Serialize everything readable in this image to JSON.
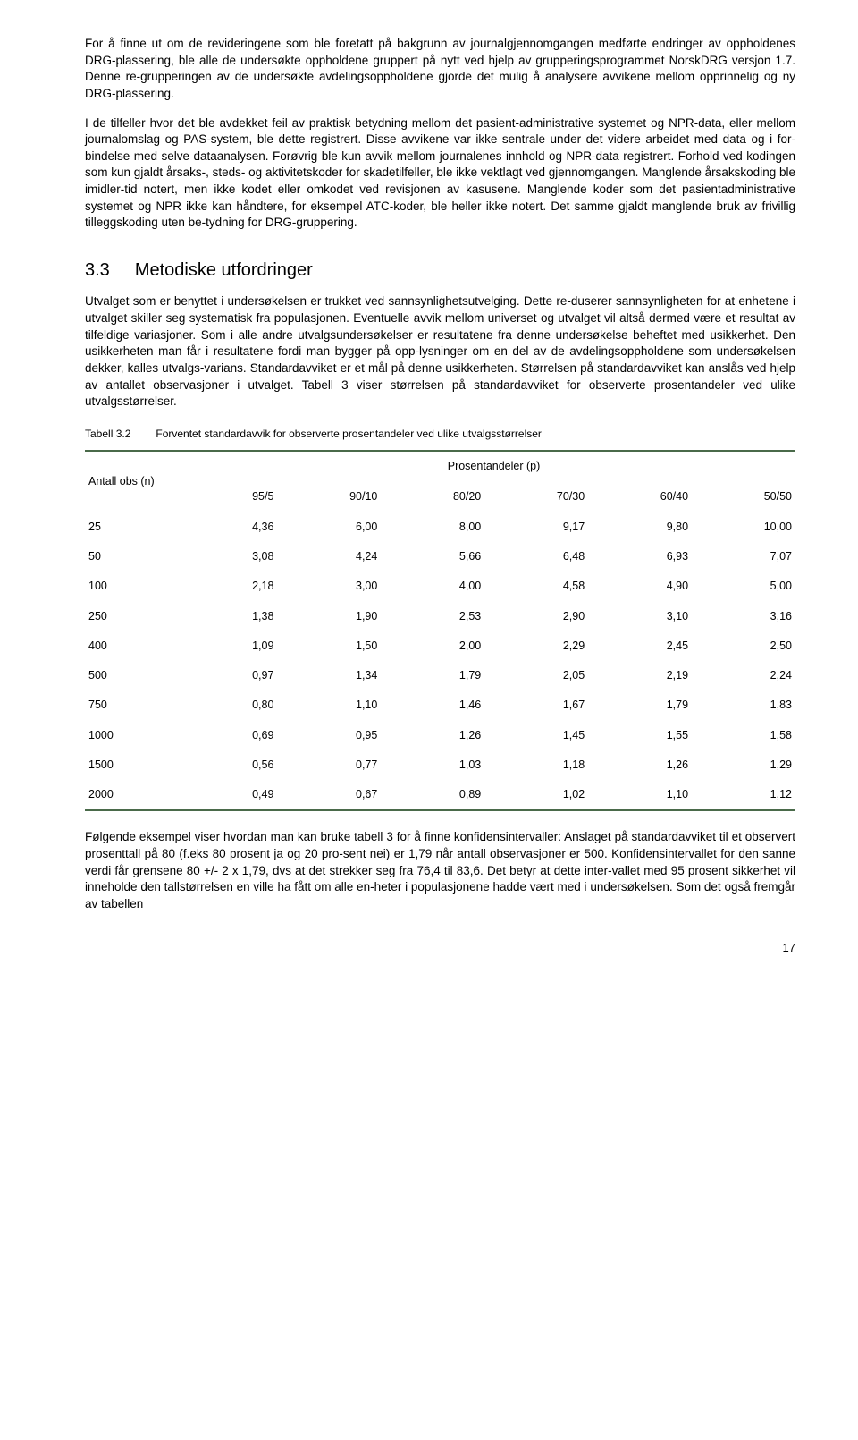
{
  "paragraphs": {
    "p1": "For å finne ut om de revideringene som ble foretatt på bakgrunn av journalgjennomgangen medførte endringer av oppholdenes DRG-plassering, ble alle de undersøkte oppholdene gruppert på nytt ved hjelp av grupperingsprogrammet NorskDRG versjon 1.7. Denne re-grupperingen av de undersøkte avdelingsoppholdene gjorde det mulig å analysere avvikene mellom opprinnelig og ny DRG-plassering.",
    "p2": "I de tilfeller hvor det ble avdekket feil av praktisk betydning mellom det pasient-administrative systemet og NPR-data, eller mellom journalomslag og PAS-system, ble dette registrert. Disse avvikene var ikke sentrale under det videre arbeidet med data og i for-bindelse med selve dataanalysen. Forøvrig ble kun avvik mellom journalenes innhold og NPR-data registrert. Forhold ved kodingen som kun gjaldt årsaks-, steds- og aktivitetskoder for skadetilfeller, ble ikke vektlagt ved gjennomgangen. Manglende årsakskoding ble imidler-tid notert, men ikke kodet eller omkodet ved revisjonen av kasusene. Manglende koder som det pasientadministrative systemet og NPR ikke kan håndtere, for eksempel ATC-koder, ble heller ikke notert. Det samme gjaldt manglende bruk av frivillig tilleggskoding uten be-tydning for DRG-gruppering.",
    "p3": "Utvalget som er benyttet i undersøkelsen er trukket ved sannsynlighetsutvelging. Dette re-duserer sannsynligheten for at enhetene i utvalget skiller seg systematisk fra populasjonen. Eventuelle avvik mellom universet og utvalget vil altså dermed være et resultat av tilfeldige variasjoner. Som i alle andre utvalgsundersøkelser er resultatene fra denne undersøkelse beheftet med usikkerhet. Den usikkerheten man får i resultatene fordi man bygger på opp-lysninger om en del av de avdelingsoppholdene som undersøkelsen dekker, kalles utvalgs-varians. Standardavviket er et mål på denne usikkerheten. Størrelsen på standardavviket kan anslås ved hjelp av antallet observasjoner i utvalget. Tabell 3 viser størrelsen på standardavviket for observerte prosentandeler ved ulike utvalgsstørrelser.",
    "p4": "Følgende eksempel viser hvordan man kan bruke tabell 3 for å finne konfidensintervaller: Anslaget på standardavviket til et observert prosenttall på 80 (f.eks 80 prosent ja og 20 pro-sent nei) er 1,79 når antall observasjoner er 500. Konfidensintervallet for den sanne verdi får grensene 80 +/- 2 x 1,79, dvs at det strekker seg fra 76,4 til 83,6. Det betyr at dette inter-vallet med 95 prosent sikkerhet vil inneholde den tallstørrelsen en ville ha fått om alle en-heter i populasjonene hadde vært med i undersøkelsen. Som det også fremgår av tabellen"
  },
  "section": {
    "num": "3.3",
    "title": "Metodiske utfordringer"
  },
  "table": {
    "label": "Tabell 3.2",
    "caption": "Forventet standardavvik for observerte prosentandeler ved ulike utvalgsstørrelser",
    "row_header": "Antall obs (n)",
    "super_header": "Prosentandeler (p)",
    "columns": [
      "95/5",
      "90/10",
      "80/20",
      "70/30",
      "60/40",
      "50/50"
    ],
    "rows": [
      {
        "n": "25",
        "v": [
          "4,36",
          "6,00",
          "8,00",
          "9,17",
          "9,80",
          "10,00"
        ]
      },
      {
        "n": "50",
        "v": [
          "3,08",
          "4,24",
          "5,66",
          "6,48",
          "6,93",
          "7,07"
        ]
      },
      {
        "n": "100",
        "v": [
          "2,18",
          "3,00",
          "4,00",
          "4,58",
          "4,90",
          "5,00"
        ]
      },
      {
        "n": "250",
        "v": [
          "1,38",
          "1,90",
          "2,53",
          "2,90",
          "3,10",
          "3,16"
        ]
      },
      {
        "n": "400",
        "v": [
          "1,09",
          "1,50",
          "2,00",
          "2,29",
          "2,45",
          "2,50"
        ]
      },
      {
        "n": "500",
        "v": [
          "0,97",
          "1,34",
          "1,79",
          "2,05",
          "2,19",
          "2,24"
        ]
      },
      {
        "n": "750",
        "v": [
          "0,80",
          "1,10",
          "1,46",
          "1,67",
          "1,79",
          "1,83"
        ]
      },
      {
        "n": "1000",
        "v": [
          "0,69",
          "0,95",
          "1,26",
          "1,45",
          "1,55",
          "1,58"
        ]
      },
      {
        "n": "1500",
        "v": [
          "0,56",
          "0,77",
          "1,03",
          "1,18",
          "1,26",
          "1,29"
        ]
      },
      {
        "n": "2000",
        "v": [
          "0,49",
          "0,67",
          "0,89",
          "1,02",
          "1,10",
          "1,12"
        ]
      }
    ]
  },
  "page_number": "17"
}
